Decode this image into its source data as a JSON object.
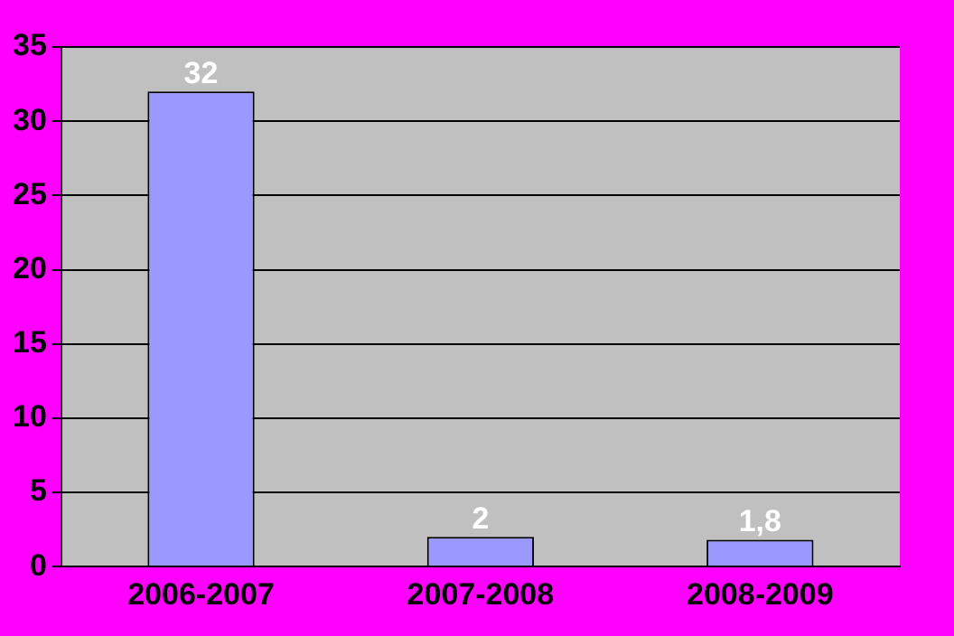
{
  "chart_data": {
    "type": "bar",
    "categories": [
      "2006-2007",
      "2007-2008",
      "2008-2009"
    ],
    "values": [
      32,
      2,
      1.8
    ],
    "value_labels": [
      "32",
      "2",
      "1,8"
    ],
    "color": "#9999ff",
    "ylim": [
      0,
      35
    ],
    "yticks": [
      0,
      5,
      10,
      15,
      20,
      25,
      30,
      35
    ],
    "grid": "y",
    "legend": false
  }
}
